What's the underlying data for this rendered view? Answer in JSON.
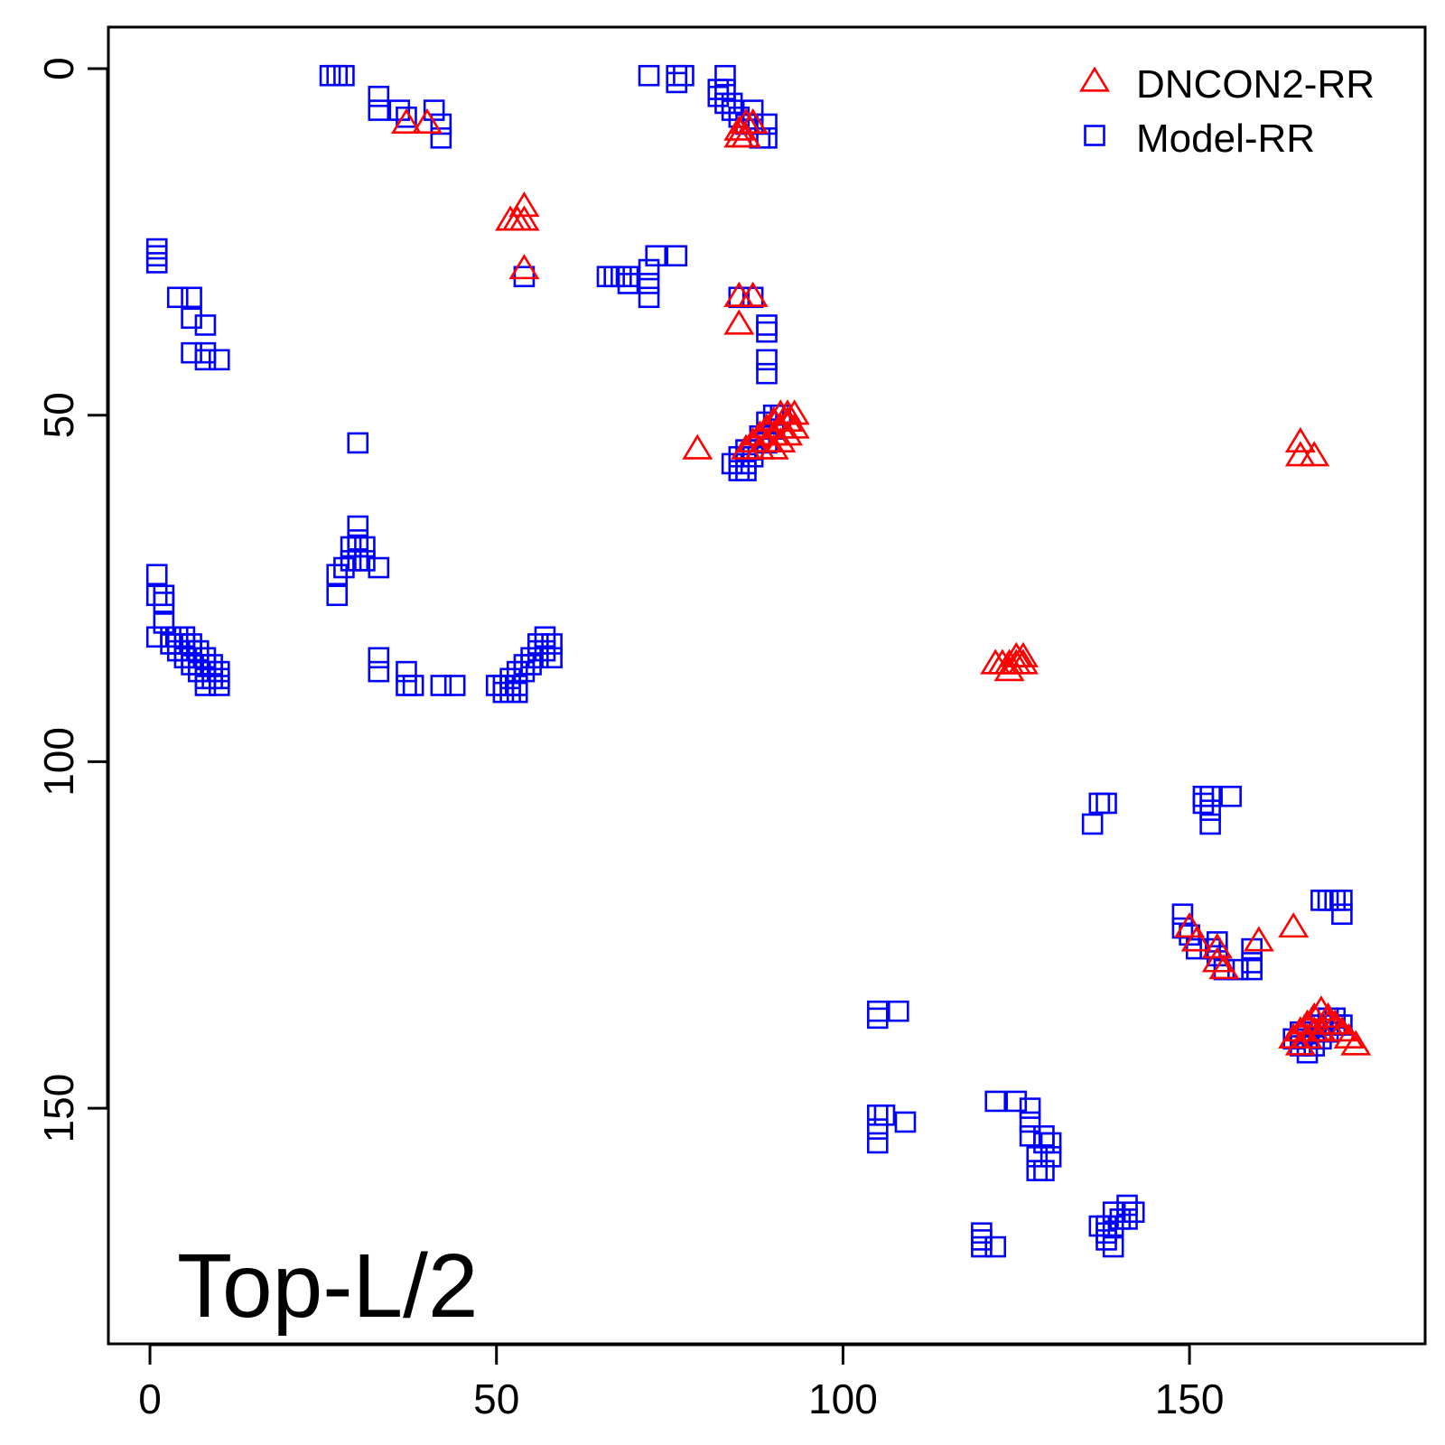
{
  "chart_data": {
    "type": "scatter",
    "title": "",
    "xlabel": "",
    "ylabel": "",
    "xlim": [
      -6,
      184
    ],
    "ylim": [
      -6,
      184
    ],
    "y_reversed": true,
    "x_ticks": [
      0,
      50,
      100,
      150
    ],
    "y_ticks": [
      0,
      50,
      100,
      150
    ],
    "x_tick_labels": [
      "0",
      "50",
      "100",
      "150"
    ],
    "y_tick_labels": [
      "0",
      "50",
      "100",
      "150"
    ],
    "grid": false,
    "legend_position": "top-right",
    "panel_label": "Top-L/2",
    "series": [
      {
        "name": "DNCON2-RR",
        "marker": "triangle",
        "color": "#ff0000",
        "points": [
          [
            37,
            8
          ],
          [
            40,
            8
          ],
          [
            85,
            9
          ],
          [
            86,
            8
          ],
          [
            87,
            8
          ],
          [
            85,
            10
          ],
          [
            86,
            10
          ],
          [
            52,
            22
          ],
          [
            53,
            22
          ],
          [
            54,
            20
          ],
          [
            54,
            22
          ],
          [
            54,
            29
          ],
          [
            85,
            33
          ],
          [
            87,
            33
          ],
          [
            85,
            37
          ],
          [
            79,
            55
          ],
          [
            86,
            55
          ],
          [
            87,
            54
          ],
          [
            88,
            53
          ],
          [
            89,
            52
          ],
          [
            90,
            51
          ],
          [
            91,
            50
          ],
          [
            92,
            50
          ],
          [
            93,
            50
          ],
          [
            88,
            55
          ],
          [
            89,
            54
          ],
          [
            90,
            53
          ],
          [
            91,
            52
          ],
          [
            92,
            51
          ],
          [
            90,
            55
          ],
          [
            91,
            54
          ],
          [
            92,
            53
          ],
          [
            93,
            52
          ],
          [
            166,
            54
          ],
          [
            166,
            56
          ],
          [
            168,
            56
          ],
          [
            122,
            86
          ],
          [
            123,
            86
          ],
          [
            124,
            86
          ],
          [
            125,
            85
          ],
          [
            126,
            85
          ],
          [
            124,
            87
          ],
          [
            125,
            86
          ],
          [
            126,
            86
          ],
          [
            150,
            124
          ],
          [
            151,
            126
          ],
          [
            154,
            127
          ],
          [
            154,
            129
          ],
          [
            155,
            130
          ],
          [
            160,
            126
          ],
          [
            165,
            124
          ],
          [
            165,
            140
          ],
          [
            166,
            139
          ],
          [
            167,
            138
          ],
          [
            168,
            137
          ],
          [
            169,
            136
          ],
          [
            170,
            137
          ],
          [
            171,
            138
          ],
          [
            166,
            141
          ],
          [
            167,
            140
          ],
          [
            168,
            139
          ],
          [
            169,
            139
          ],
          [
            170,
            138
          ],
          [
            172,
            139
          ],
          [
            173,
            140
          ],
          [
            174,
            141
          ]
        ]
      },
      {
        "name": "Model-RR",
        "marker": "square",
        "color": "#0000ff",
        "points": [
          [
            26,
            1
          ],
          [
            27,
            1
          ],
          [
            28,
            1
          ],
          [
            33,
            4
          ],
          [
            33,
            6
          ],
          [
            36,
            6
          ],
          [
            37,
            7
          ],
          [
            41,
            6
          ],
          [
            42,
            8
          ],
          [
            42,
            10
          ],
          [
            72,
            1
          ],
          [
            76,
            1
          ],
          [
            77,
            1
          ],
          [
            76,
            2
          ],
          [
            83,
            1
          ],
          [
            82,
            3
          ],
          [
            83,
            3
          ],
          [
            82,
            4
          ],
          [
            83,
            5
          ],
          [
            84,
            5
          ],
          [
            84,
            6
          ],
          [
            85,
            7
          ],
          [
            87,
            6
          ],
          [
            86,
            8
          ],
          [
            87,
            8
          ],
          [
            89,
            8
          ],
          [
            88,
            10
          ],
          [
            89,
            10
          ],
          [
            1,
            26
          ],
          [
            1,
            27
          ],
          [
            1,
            28
          ],
          [
            4,
            33
          ],
          [
            6,
            33
          ],
          [
            6,
            36
          ],
          [
            8,
            37
          ],
          [
            6,
            41
          ],
          [
            8,
            41
          ],
          [
            8,
            42
          ],
          [
            10,
            42
          ],
          [
            54,
            30
          ],
          [
            66,
            30
          ],
          [
            67,
            30
          ],
          [
            68,
            30
          ],
          [
            69,
            30
          ],
          [
            69,
            31
          ],
          [
            72,
            29
          ],
          [
            72,
            31
          ],
          [
            72,
            33
          ],
          [
            73,
            27
          ],
          [
            76,
            27
          ],
          [
            85,
            33
          ],
          [
            87,
            33
          ],
          [
            89,
            37
          ],
          [
            89,
            38
          ],
          [
            89,
            42
          ],
          [
            89,
            44
          ],
          [
            30,
            54
          ],
          [
            90,
            50
          ],
          [
            91,
            50
          ],
          [
            89,
            51
          ],
          [
            90,
            52
          ],
          [
            88,
            53
          ],
          [
            89,
            54
          ],
          [
            86,
            55
          ],
          [
            87,
            55
          ],
          [
            85,
            56
          ],
          [
            87,
            56
          ],
          [
            84,
            57
          ],
          [
            86,
            57
          ],
          [
            85,
            58
          ],
          [
            86,
            58
          ],
          [
            30,
            66
          ],
          [
            30,
            68
          ],
          [
            29,
            69
          ],
          [
            30,
            69
          ],
          [
            31,
            69
          ],
          [
            29,
            71
          ],
          [
            30,
            71
          ],
          [
            31,
            71
          ],
          [
            33,
            72
          ],
          [
            28,
            72
          ],
          [
            27,
            73
          ],
          [
            27,
            76
          ],
          [
            1,
            73
          ],
          [
            1,
            76
          ],
          [
            2,
            76
          ],
          [
            2,
            77
          ],
          [
            2,
            80
          ],
          [
            1,
            82
          ],
          [
            3,
            82
          ],
          [
            4,
            82
          ],
          [
            5,
            82
          ],
          [
            3,
            83
          ],
          [
            4,
            83
          ],
          [
            5,
            83
          ],
          [
            6,
            83
          ],
          [
            4,
            84
          ],
          [
            5,
            84
          ],
          [
            6,
            84
          ],
          [
            7,
            84
          ],
          [
            5,
            85
          ],
          [
            6,
            85
          ],
          [
            7,
            85
          ],
          [
            8,
            85
          ],
          [
            6,
            86
          ],
          [
            7,
            86
          ],
          [
            8,
            86
          ],
          [
            9,
            86
          ],
          [
            7,
            87
          ],
          [
            8,
            87
          ],
          [
            9,
            87
          ],
          [
            10,
            87
          ],
          [
            8,
            88
          ],
          [
            9,
            88
          ],
          [
            10,
            88
          ],
          [
            8,
            89
          ],
          [
            10,
            89
          ],
          [
            33,
            85
          ],
          [
            33,
            87
          ],
          [
            37,
            87
          ],
          [
            37,
            89
          ],
          [
            38,
            89
          ],
          [
            42,
            89
          ],
          [
            44,
            89
          ],
          [
            50,
            89
          ],
          [
            51,
            89
          ],
          [
            52,
            89
          ],
          [
            53,
            89
          ],
          [
            51,
            90
          ],
          [
            52,
            90
          ],
          [
            53,
            90
          ],
          [
            52,
            88
          ],
          [
            53,
            87
          ],
          [
            54,
            87
          ],
          [
            54,
            86
          ],
          [
            55,
            86
          ],
          [
            55,
            85
          ],
          [
            56,
            85
          ],
          [
            56,
            84
          ],
          [
            57,
            84
          ],
          [
            56,
            83
          ],
          [
            57,
            82
          ],
          [
            58,
            83
          ],
          [
            58,
            85
          ],
          [
            136,
            109
          ],
          [
            137,
            106
          ],
          [
            138,
            106
          ],
          [
            152,
            105
          ],
          [
            153,
            105
          ],
          [
            152,
            106
          ],
          [
            153,
            107
          ],
          [
            153,
            109
          ],
          [
            156,
            105
          ],
          [
            169,
            120
          ],
          [
            170,
            120
          ],
          [
            171,
            120
          ],
          [
            172,
            120
          ],
          [
            172,
            122
          ],
          [
            149,
            122
          ],
          [
            149,
            124
          ],
          [
            150,
            125
          ],
          [
            151,
            127
          ],
          [
            153,
            127
          ],
          [
            154,
            126
          ],
          [
            154,
            128
          ],
          [
            155,
            130
          ],
          [
            157,
            130
          ],
          [
            159,
            129
          ],
          [
            159,
            130
          ],
          [
            159,
            127
          ],
          [
            165,
            140
          ],
          [
            166,
            141
          ],
          [
            167,
            142
          ],
          [
            168,
            141
          ],
          [
            169,
            140
          ],
          [
            170,
            139
          ],
          [
            171,
            138
          ],
          [
            166,
            139
          ],
          [
            167,
            139
          ],
          [
            168,
            138
          ],
          [
            169,
            137
          ],
          [
            170,
            137
          ],
          [
            171,
            137
          ],
          [
            172,
            138
          ],
          [
            105,
            136
          ],
          [
            105,
            137
          ],
          [
            108,
            136
          ],
          [
            105,
            151
          ],
          [
            105,
            153
          ],
          [
            105,
            155
          ],
          [
            106,
            151
          ],
          [
            109,
            152
          ],
          [
            122,
            149
          ],
          [
            125,
            149
          ],
          [
            127,
            150
          ],
          [
            127,
            152
          ],
          [
            127,
            154
          ],
          [
            129,
            154
          ],
          [
            129,
            155
          ],
          [
            130,
            155
          ],
          [
            130,
            157
          ],
          [
            128,
            157
          ],
          [
            128,
            159
          ],
          [
            129,
            159
          ],
          [
            120,
            168
          ],
          [
            120,
            169
          ],
          [
            120,
            170
          ],
          [
            122,
            170
          ],
          [
            137,
            167
          ],
          [
            138,
            167
          ],
          [
            138,
            168
          ],
          [
            139,
            167
          ],
          [
            139,
            165
          ],
          [
            140,
            166
          ],
          [
            141,
            164
          ],
          [
            141,
            166
          ],
          [
            142,
            165
          ],
          [
            139,
            170
          ],
          [
            138,
            169
          ]
        ]
      }
    ]
  }
}
